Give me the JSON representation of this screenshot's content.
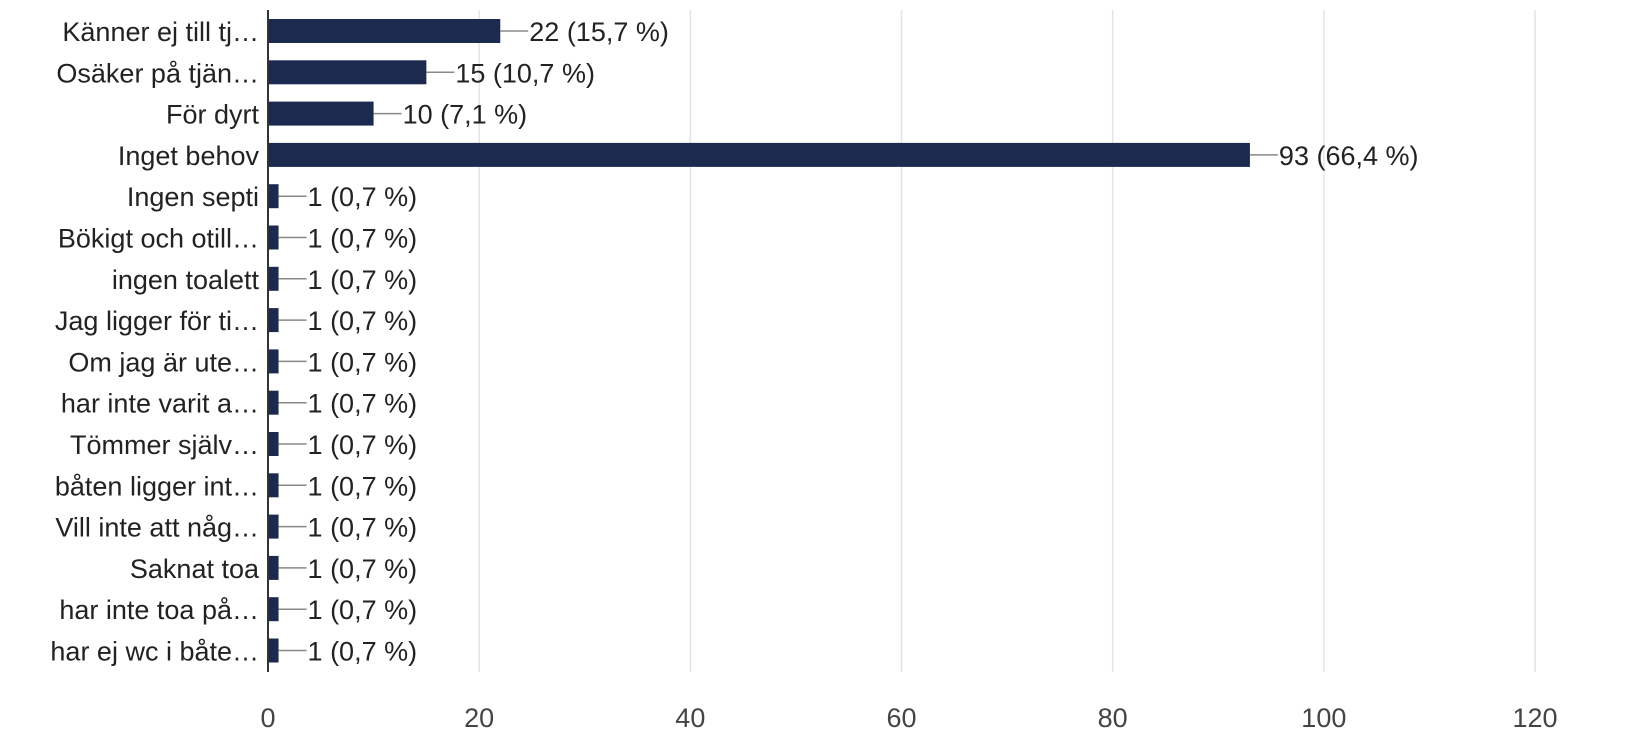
{
  "chart_data": {
    "type": "bar",
    "orientation": "horizontal",
    "categories": [
      "Känner ej till tj…",
      "Osäker på tjän…",
      "För dyrt",
      "Inget behov",
      "Ingen septi",
      "Bökigt och otill…",
      "ingen toalett",
      "Jag ligger för ti…",
      "Om jag är ute…",
      "har inte varit a…",
      "Tömmer själv…",
      "båten ligger int…",
      "Vill inte att någ…",
      "Saknat toa",
      "har inte toa på…",
      "har ej wc i båte…"
    ],
    "values": [
      22,
      15,
      10,
      93,
      1,
      1,
      1,
      1,
      1,
      1,
      1,
      1,
      1,
      1,
      1,
      1
    ],
    "data_labels": [
      "22 (15,7 %)",
      "15 (10,7 %)",
      "10 (7,1 %)",
      "93 (66,4 %)",
      "1 (0,7 %)",
      "1 (0,7 %)",
      "1 (0,7 %)",
      "1 (0,7 %)",
      "1 (0,7 %)",
      "1 (0,7 %)",
      "1 (0,7 %)",
      "1 (0,7 %)",
      "1 (0,7 %)",
      "1 (0,7 %)",
      "1 (0,7 %)",
      "1 (0,7 %)"
    ],
    "xlim": [
      0,
      120
    ],
    "xticks": [
      0,
      20,
      40,
      60,
      80,
      100,
      120
    ],
    "xtick_labels": [
      "0",
      "20",
      "40",
      "60",
      "80",
      "100",
      "120"
    ],
    "title": "",
    "xlabel": "",
    "ylabel": "",
    "grid": "vertical",
    "legend": "none",
    "colors": {
      "bar": "#1c2a4f",
      "grid": "#e4e4e4",
      "axis": "#333333",
      "leader": "#888888",
      "text": "#222222"
    }
  }
}
